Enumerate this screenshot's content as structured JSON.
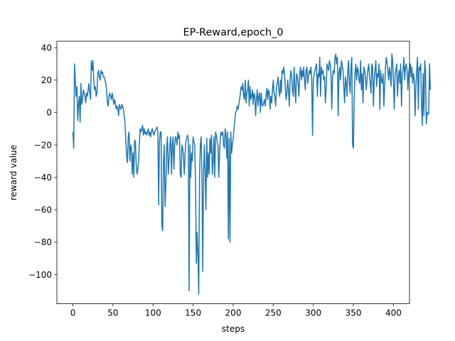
{
  "chart_data": {
    "type": "line",
    "title": "EP-Reward,epoch_0",
    "xlabel": "steps",
    "ylabel": "reward value",
    "xlim": [
      -20,
      420
    ],
    "ylim": [
      -118,
      44
    ],
    "xticks": [
      0,
      50,
      100,
      150,
      200,
      250,
      300,
      350,
      400
    ],
    "yticks": [
      -100,
      -80,
      -60,
      -40,
      -20,
      0,
      20,
      40
    ],
    "ytick_labels": [
      "−100",
      "−80",
      "−60",
      "−40",
      "−20",
      "0",
      "20",
      "40"
    ],
    "grid": false,
    "line_color": "#1f77b4",
    "series": [
      {
        "values": [
          -12,
          -22,
          30,
          20,
          10,
          16,
          -5,
          5,
          10,
          -6,
          18,
          5,
          8,
          14,
          12,
          10,
          6,
          12,
          10,
          14,
          18,
          12,
          8,
          32,
          26,
          32,
          20,
          14,
          16,
          10,
          12,
          24,
          26,
          22,
          20,
          26,
          24,
          25,
          22,
          22,
          20,
          18,
          14,
          6,
          4,
          10,
          12,
          10,
          8,
          12,
          9,
          5,
          8,
          6,
          2,
          4,
          3,
          -2,
          5,
          3,
          2,
          5,
          4,
          2,
          -2,
          -6,
          -18,
          -26,
          -31,
          -15,
          -12,
          -30,
          -20,
          -22,
          -38,
          -25,
          -40,
          -17,
          -18,
          -32,
          -38,
          -35,
          -30,
          -18,
          -10,
          -12,
          -10,
          -8,
          -14,
          -10,
          -13,
          -12,
          -14,
          -12,
          -10,
          -14,
          -12,
          -15,
          -12,
          -10,
          -12,
          -14,
          -12,
          -11,
          -10,
          -9,
          -12,
          -57,
          -18,
          -12,
          -12,
          -70,
          -73,
          -30,
          -20,
          -58,
          -45,
          -22,
          -15,
          -38,
          -30,
          -20,
          -15,
          -38,
          -20,
          -15,
          -35,
          -20,
          -15,
          -16,
          -20,
          -12,
          -16,
          -14,
          -38,
          -40,
          -20,
          -22,
          -28,
          -38,
          -25,
          -18,
          -16,
          -14,
          -16,
          -110,
          -20,
          -40,
          -25,
          -30,
          -15,
          -18,
          -20,
          -42,
          -93,
          -74,
          -88,
          -112,
          -40,
          -20,
          -15,
          -37,
          -98,
          -40,
          -20,
          -38,
          -60,
          -16,
          -40,
          -25,
          -38,
          -16,
          -25,
          -14,
          -38,
          -30,
          -15,
          -40,
          -12,
          -14,
          -18,
          -20,
          -40,
          -25,
          -15,
          -12,
          -14,
          -12,
          -20,
          -22,
          -10,
          -14,
          -28,
          -12,
          -78,
          -16,
          -80,
          -12,
          -25,
          -20,
          -16,
          -10,
          -5,
          0,
          1,
          4,
          2,
          5,
          8,
          12,
          16,
          14,
          18,
          10,
          8,
          20,
          6,
          12,
          14,
          20,
          4,
          16,
          8,
          10,
          14,
          5,
          12,
          10,
          -2,
          8,
          14,
          4,
          10,
          12,
          0,
          12,
          5,
          4,
          6,
          8,
          4,
          10,
          15,
          8,
          14,
          12,
          2,
          10,
          6,
          14,
          20,
          12,
          10,
          4,
          16,
          18,
          22,
          14,
          10,
          20,
          12,
          26,
          24,
          28,
          24,
          16,
          8,
          12,
          20,
          14,
          4,
          20,
          26,
          22,
          14,
          10,
          28,
          16,
          6,
          24,
          22,
          18,
          10,
          24,
          28,
          20,
          26,
          22,
          28,
          20,
          14,
          26,
          28,
          18,
          22,
          26,
          24,
          28,
          20,
          -14,
          20,
          24,
          26,
          28,
          30,
          10,
          24,
          22,
          34,
          10,
          28,
          24,
          26,
          20,
          22,
          6,
          14,
          30,
          28,
          26,
          32,
          30,
          24,
          2,
          22,
          26,
          24,
          34,
          36,
          30,
          34,
          -2,
          24,
          28,
          20,
          32,
          30,
          26,
          16,
          6,
          22,
          18,
          10,
          26,
          32,
          18,
          12,
          28,
          34,
          -20,
          -22,
          10,
          24,
          30,
          20,
          28,
          26,
          20,
          18,
          32,
          14,
          24,
          6,
          28,
          26,
          22,
          14,
          20,
          26,
          30,
          24,
          18,
          12,
          30,
          28,
          4,
          20,
          26,
          32,
          16,
          24,
          22,
          30,
          2,
          26,
          20,
          18,
          24,
          4,
          16,
          28,
          34,
          30,
          26,
          20,
          28,
          24,
          16,
          36,
          32,
          18,
          2,
          24,
          26,
          30,
          10,
          22,
          26,
          18,
          30,
          4,
          24,
          26,
          34,
          20,
          28,
          30,
          26,
          14,
          24,
          28,
          30,
          22,
          28,
          18,
          24,
          20,
          -2,
          16,
          26,
          34,
          2,
          28,
          26,
          30,
          4,
          -8,
          24,
          -2,
          32,
          26,
          -7,
          0,
          -1,
          0,
          30,
          14
        ]
      }
    ]
  }
}
